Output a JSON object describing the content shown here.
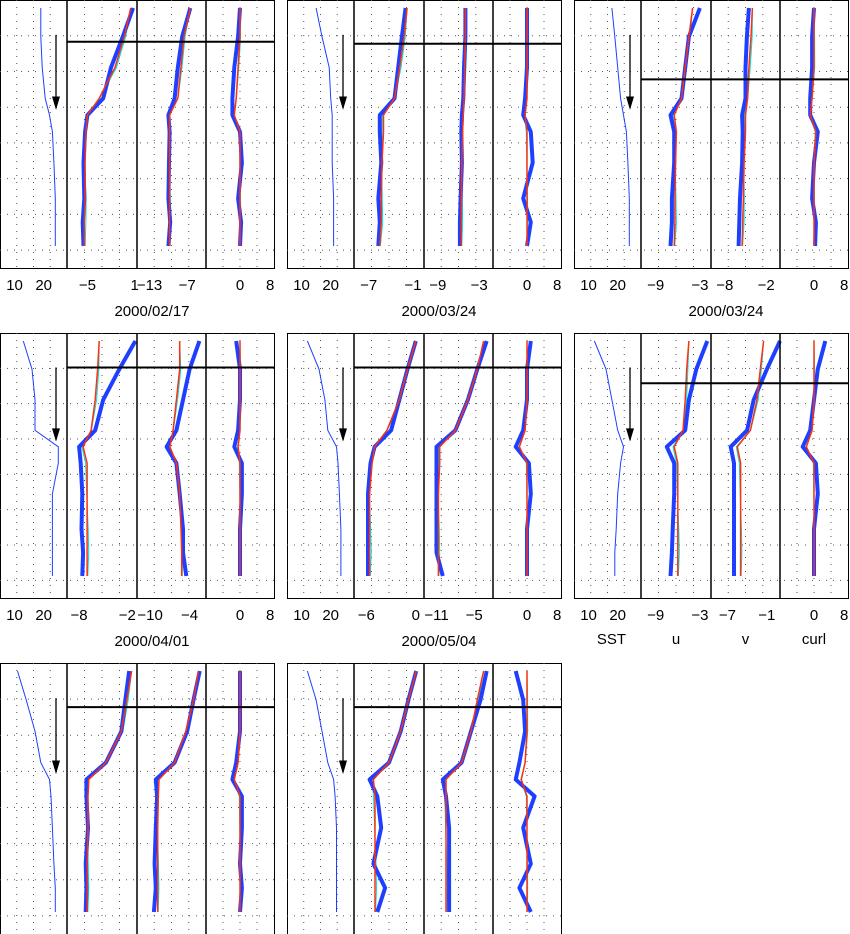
{
  "chart_data": {
    "type": "line",
    "grid": true,
    "columns": [
      "SST",
      "u",
      "v",
      "curl"
    ],
    "depth_levels": [
      0,
      0.12,
      0.25,
      0.38,
      0.45,
      0.52,
      0.65,
      0.8,
      0.9,
      1.0
    ],
    "colors": {
      "observed": "#1f3fff",
      "model": "#ff3010",
      "model_alt": "#00e0e0",
      "mixed_layer": "#000000",
      "sst": "#1f3fff"
    },
    "panels": [
      {
        "title": "2000/02/17",
        "show_ticks": true,
        "mld": 0.1,
        "xlim": {
          "SST": [
            5,
            28
          ],
          "u": [
            -7.6,
            1.3
          ],
          "v": [
            -15,
            -4
          ],
          "curl": [
            -9,
            9
          ]
        },
        "ticks": {
          "SST": [
            "10",
            "20"
          ],
          "u": [
            "-5",
            "1"
          ],
          "v": [
            "-13",
            "-7"
          ],
          "curl": [
            "0",
            "8"
          ]
        },
        "tick_values": {
          "SST": [
            10,
            20
          ],
          "u": [
            -5,
            1
          ],
          "v": [
            -13,
            -7
          ],
          "curl": [
            0,
            8
          ]
        },
        "sst": [
          19,
          19,
          19.5,
          20.5,
          22,
          23,
          23.5,
          24,
          24,
          24
        ],
        "u_obs": [
          0.8,
          -0.5,
          -2,
          -3,
          -5,
          -5.3,
          -5.5,
          -5.4,
          -5.6,
          -5.5
        ],
        "u_model": [
          0.5,
          -0.3,
          -1.5,
          -3.5,
          -5,
          -5.2,
          -5.3,
          -5.3,
          -5.4,
          -5.4
        ],
        "v_obs": [
          -6.5,
          -7.8,
          -8.5,
          -9,
          -10,
          -9.8,
          -9.9,
          -10,
          -9.7,
          -10
        ],
        "v_model": [
          -6.5,
          -7.5,
          -8,
          -8.5,
          -9.8,
          -9.8,
          -9.8,
          -9.8,
          -9.8,
          -9.8
        ],
        "curl_obs": [
          0,
          -0.5,
          -1.5,
          -2,
          -2,
          0,
          0.5,
          -0.5,
          0.3,
          0
        ],
        "curl_model": [
          0,
          0,
          -0.5,
          -1,
          -1.5,
          0,
          0,
          0,
          0,
          0
        ]
      },
      {
        "title": "2000/03/24",
        "show_ticks": true,
        "mld": 0.15,
        "xlim": {
          "SST": [
            5,
            28
          ],
          "u": [
            -9,
            0.5
          ],
          "v": [
            -11,
            -1
          ],
          "curl": [
            -9,
            9
          ]
        },
        "ticks": {
          "SST": [
            "10",
            "20"
          ],
          "u": [
            "-7",
            "-1"
          ],
          "v": [
            "-9",
            "-3"
          ],
          "curl": [
            "0",
            "8"
          ]
        },
        "tick_values": {
          "SST": [
            10,
            20
          ],
          "u": [
            -7,
            -1
          ],
          "v": [
            -9,
            -3
          ],
          "curl": [
            0,
            8
          ]
        },
        "sst": [
          15,
          17,
          19.5,
          20,
          20.5,
          20.5,
          20.5,
          21,
          21,
          21
        ],
        "u_obs": [
          -2,
          -2.5,
          -3,
          -3.5,
          -5.5,
          -5.5,
          -5.3,
          -5.7,
          -5.5,
          -5.7
        ],
        "u_model": [
          -1.8,
          -2.2,
          -2.8,
          -3.5,
          -5,
          -5,
          -5.2,
          -5.3,
          -5.3,
          -5.5
        ],
        "v_obs": [
          -5,
          -5,
          -5.2,
          -5.3,
          -5.5,
          -5.6,
          -5.5,
          -5.7,
          -5.8,
          -5.8
        ],
        "v_model": [
          -5,
          -5,
          -5.1,
          -5.2,
          -5.3,
          -5.4,
          -5.5,
          -5.6,
          -5.6,
          -5.6
        ],
        "curl_obs": [
          0,
          0,
          0,
          -0.5,
          -1,
          1,
          1.5,
          -1,
          1,
          0
        ],
        "curl_model": [
          0,
          0,
          0,
          0,
          -0.5,
          0,
          0,
          0,
          0,
          0
        ]
      },
      {
        "title": "2000/03/24",
        "show_ticks": true,
        "mld": 0.3,
        "xlim": {
          "SST": [
            5,
            28
          ],
          "u": [
            -11,
            -1.5
          ],
          "v": [
            -10,
            0
          ],
          "curl": [
            -9,
            9
          ]
        },
        "ticks": {
          "SST": [
            "10",
            "20"
          ],
          "u": [
            "-9",
            "-3"
          ],
          "v": [
            "-8",
            "-2"
          ],
          "curl": [
            "0",
            "8"
          ]
        },
        "tick_values": {
          "SST": [
            10,
            20
          ],
          "u": [
            -9,
            -3
          ],
          "v": [
            -8,
            -2
          ],
          "curl": [
            0,
            8
          ]
        },
        "sst": [
          18,
          19,
          20,
          21,
          22,
          23,
          23.5,
          24,
          24,
          24
        ],
        "u_obs": [
          -3,
          -4.5,
          -5,
          -5.5,
          -7,
          -6.5,
          -6.5,
          -6.8,
          -6.8,
          -7
        ],
        "u_model": [
          -4,
          -4.5,
          -5,
          -5.5,
          -6.5,
          -6.2,
          -6.3,
          -6.4,
          -6.4,
          -6.5
        ],
        "v_obs": [
          -4.5,
          -4.8,
          -5,
          -5,
          -5.5,
          -5.4,
          -5.5,
          -5.8,
          -5.9,
          -6
        ],
        "v_model": [
          -4,
          -4.2,
          -4.5,
          -4.7,
          -5,
          -5,
          -5.2,
          -5.3,
          -5.4,
          -5.5
        ],
        "curl_obs": [
          0,
          -0.5,
          -0.5,
          -1,
          -1,
          1,
          0,
          -0.5,
          0.5,
          0.3
        ],
        "curl_model": [
          0,
          0,
          0,
          -0.5,
          -1,
          0.5,
          0,
          0,
          0,
          0
        ]
      },
      {
        "title": "2000/04/01",
        "show_ticks": true,
        "mld": 0.07,
        "xlim": {
          "SST": [
            5,
            28
          ],
          "u": [
            -9.5,
            -0.8
          ],
          "v": [
            -12,
            -1.5
          ],
          "curl": [
            -9,
            9
          ]
        },
        "ticks": {
          "SST": [
            "10",
            "20"
          ],
          "u": [
            "-8",
            "-2"
          ],
          "v": [
            "-10",
            "-4"
          ],
          "curl": [
            "0",
            "8"
          ]
        },
        "tick_values": {
          "SST": [
            10,
            20
          ],
          "u": [
            -8,
            -2
          ],
          "v": [
            -10,
            -4
          ],
          "curl": [
            0,
            8
          ]
        },
        "sst": [
          13,
          16,
          17,
          17,
          25,
          25,
          23,
          23,
          23,
          23
        ],
        "u_obs": [
          -1,
          -3,
          -5,
          -6,
          -8,
          -7.8,
          -7.6,
          -7.7,
          -7.5,
          -7.6
        ],
        "u_model": [
          -5.5,
          -5.7,
          -6,
          -6.5,
          -7.5,
          -7,
          -7,
          -7,
          -7,
          -7
        ],
        "v_obs": [
          -2.5,
          -4,
          -5,
          -6,
          -7.5,
          -6,
          -5.5,
          -5,
          -5,
          -4.5
        ],
        "v_model": [
          -5.5,
          -5.5,
          -6,
          -6.5,
          -7,
          -6,
          -5.5,
          -5.3,
          -5.2,
          -5.2
        ],
        "curl_obs": [
          -1,
          0,
          0,
          -0.5,
          -1.5,
          0.5,
          0.5,
          0,
          0,
          0
        ],
        "curl_model": [
          0,
          0,
          0,
          0,
          -0.5,
          0,
          0,
          0,
          0,
          0
        ]
      },
      {
        "title": "2000/05/04",
        "show_ticks": true,
        "mld": 0.07,
        "xlim": {
          "SST": [
            5,
            28
          ],
          "u": [
            -7.5,
            1
          ],
          "v": [
            -13,
            -2
          ],
          "curl": [
            -9,
            9
          ]
        },
        "ticks": {
          "SST": [
            "10",
            "20"
          ],
          "u": [
            "-6",
            "0"
          ],
          "v": [
            "-11",
            "-5"
          ],
          "curl": [
            "0",
            "8"
          ]
        },
        "tick_values": {
          "SST": [
            10,
            20
          ],
          "u": [
            -6,
            0
          ],
          "v": [
            -11,
            -5
          ],
          "curl": [
            0,
            8
          ]
        },
        "sst": [
          12,
          16,
          18,
          19,
          22,
          22.5,
          23,
          23.5,
          23.5,
          23.5
        ],
        "u_obs": [
          0,
          -1,
          -2,
          -3,
          -5,
          -5.5,
          -5.8,
          -5.8,
          -5.8,
          -5.8
        ],
        "u_model": [
          0,
          -1,
          -2,
          -3.5,
          -5,
          -5.3,
          -5.6,
          -5.6,
          -5.6,
          -5.6
        ],
        "v_obs": [
          -3,
          -4.5,
          -6,
          -8,
          -11,
          -11,
          -11,
          -11,
          -11,
          -10
        ],
        "v_model": [
          -3.5,
          -4.5,
          -6,
          -8,
          -10.5,
          -10.5,
          -10.7,
          -10.7,
          -10.7,
          -10.7
        ],
        "curl_obs": [
          1,
          0,
          0,
          -1,
          -3,
          0.5,
          1,
          0,
          0,
          0
        ],
        "curl_model": [
          0,
          0,
          0,
          -0.5,
          -2,
          0,
          0,
          0,
          0,
          0
        ]
      },
      {
        "title": "",
        "show_ticks": true,
        "mld": 0.18,
        "xlim": {
          "SST": [
            5,
            28
          ],
          "u": [
            -11,
            -1.5
          ],
          "v": [
            -9.5,
            1
          ],
          "curl": [
            -9,
            9
          ]
        },
        "ticks": {
          "SST": [
            "10",
            "20"
          ],
          "u": [
            "-9",
            "-3"
          ],
          "v": [
            "-7",
            "-1"
          ],
          "curl": [
            "0",
            "8"
          ]
        },
        "tick_values": {
          "SST": [
            10,
            20
          ],
          "u": [
            -9,
            -3
          ],
          "v": [
            -7,
            -1
          ],
          "curl": [
            0,
            8
          ]
        },
        "xlabels": [
          "SST",
          "u",
          "v",
          "curl"
        ],
        "sst": [
          12,
          16,
          18,
          20,
          22,
          21,
          20,
          19.5,
          19,
          19
        ],
        "u_obs": [
          -2,
          -3.5,
          -4.5,
          -5,
          -7.5,
          -6.5,
          -6.5,
          -6.7,
          -6.8,
          -7
        ],
        "u_model": [
          -4.5,
          -4.8,
          -5,
          -5.3,
          -6.5,
          -6,
          -6,
          -6,
          -6,
          -6
        ],
        "v_obs": [
          1,
          -1,
          -3,
          -4,
          -6.5,
          -6,
          -6,
          -6,
          -6,
          -6
        ],
        "v_model": [
          -1.5,
          -2,
          -2.5,
          -3.5,
          -5.5,
          -5,
          -5,
          -5,
          -5,
          -5
        ],
        "curl_obs": [
          3,
          1,
          0,
          -1,
          -3,
          0.5,
          1,
          0,
          0,
          0
        ],
        "curl_model": [
          0,
          0,
          0,
          -0.5,
          -2,
          0,
          0,
          0,
          0,
          0
        ]
      },
      {
        "title": "",
        "show_ticks": false,
        "mld": 0.15,
        "xlim": {
          "SST": [
            5,
            28
          ],
          "u": [
            -8,
            1
          ],
          "v": [
            -12,
            -1
          ],
          "curl": [
            -9,
            9
          ]
        },
        "sst": [
          11,
          14,
          17,
          19,
          22,
          22.5,
          23,
          23.5,
          24,
          24
        ],
        "u_obs": [
          0,
          -0.5,
          -1,
          -3,
          -5.5,
          -5.5,
          -5.3,
          -5.6,
          -5.5,
          -5.6
        ],
        "u_model": [
          0.3,
          -0.3,
          -1,
          -3,
          -5.2,
          -5.3,
          -5.3,
          -5.4,
          -5.4,
          -5.4
        ],
        "v_obs": [
          -2,
          -3,
          -4,
          -6,
          -9,
          -8.8,
          -9,
          -9.2,
          -9,
          -9.3
        ],
        "v_model": [
          -2.2,
          -3,
          -4.2,
          -6,
          -8.5,
          -8.6,
          -8.7,
          -8.7,
          -8.7,
          -8.7
        ],
        "curl_obs": [
          0,
          0,
          0,
          -1,
          -2,
          0.5,
          0.5,
          0,
          0.5,
          0
        ],
        "curl_model": [
          0,
          0,
          0,
          -0.5,
          -1.5,
          0,
          0,
          0,
          0,
          0
        ]
      },
      {
        "title": "",
        "show_ticks": false,
        "mld": 0.15,
        "xlim": {
          "SST": [
            5,
            28
          ],
          "u": [
            -8,
            1
          ],
          "v": [
            -12,
            -1
          ],
          "curl": [
            -9,
            9
          ]
        },
        "sst": [
          12,
          15,
          17,
          19,
          21,
          21.5,
          22,
          22,
          22,
          22
        ],
        "u_obs": [
          0,
          -1,
          -2,
          -3.5,
          -6,
          -5,
          -4.5,
          -5.5,
          -4,
          -5
        ],
        "u_model": [
          0,
          -1,
          -2,
          -3.5,
          -5.5,
          -5.3,
          -5.3,
          -5.3,
          -5.3,
          -5.3
        ],
        "v_obs": [
          -2,
          -3,
          -4.5,
          -6,
          -9,
          -8.5,
          -8,
          -8,
          -8,
          -8
        ],
        "v_model": [
          -2.5,
          -3.5,
          -4.5,
          -6,
          -8.5,
          -8.5,
          -8.5,
          -8.5,
          -8.5,
          -8.5
        ],
        "curl_obs": [
          -3,
          -1,
          -0.5,
          -2,
          -3,
          2,
          -1,
          1,
          -2,
          1
        ],
        "curl_model": [
          0,
          0,
          0,
          -0.5,
          -1.5,
          0,
          0,
          0,
          0,
          0
        ]
      }
    ]
  }
}
